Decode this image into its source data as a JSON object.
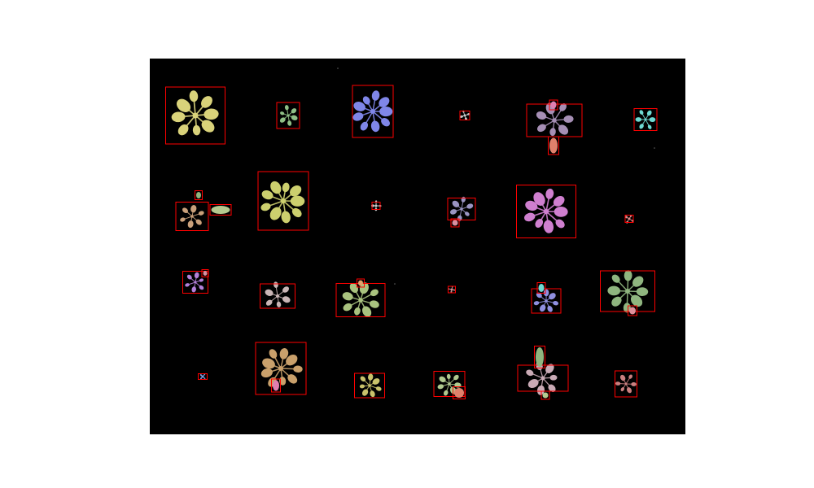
{
  "figure": {
    "box_color": "#ff0000",
    "background_color": "#000000"
  },
  "plants": [
    {
      "id": "r1c1",
      "color": "#d9d27a"
    },
    {
      "id": "r1c2",
      "color": "#8fbf86"
    },
    {
      "id": "r1c3",
      "color": "#7f86e8"
    },
    {
      "id": "r1c4",
      "color": "#c9c9c9"
    },
    {
      "id": "r1c5",
      "color": "#a68fb5"
    },
    {
      "id": "r1c6",
      "color": "#6fd9d2"
    },
    {
      "id": "r2c1",
      "color": "#c9a07a"
    },
    {
      "id": "r2c2",
      "color": "#cccf6e"
    },
    {
      "id": "r2c3",
      "color": "#c9c9c9"
    },
    {
      "id": "r2c4",
      "color": "#9a94c2"
    },
    {
      "id": "r2c5",
      "color": "#cf7fcf"
    },
    {
      "id": "r2c6",
      "color": "#d88f8f"
    },
    {
      "id": "r3c1",
      "color": "#b380d9"
    },
    {
      "id": "r3c2",
      "color": "#c9b5b5"
    },
    {
      "id": "r3c3",
      "color": "#a9c27f"
    },
    {
      "id": "r3c4",
      "color": "#c99090"
    },
    {
      "id": "r3c5",
      "color": "#8f8fe0"
    },
    {
      "id": "r3c6",
      "color": "#8fb57f"
    },
    {
      "id": "r4c1",
      "color": "#7f9be0"
    },
    {
      "id": "r4c2",
      "color": "#c9a06b"
    },
    {
      "id": "r4c3",
      "color": "#c9c26b"
    },
    {
      "id": "r4c4",
      "color": "#b0c98f"
    },
    {
      "id": "r4c5",
      "color": "#c9aab5"
    },
    {
      "id": "r4c6",
      "color": "#c98080"
    }
  ],
  "extra_leaf_colors": [
    "#e07fb0",
    "#e0806b",
    "#8fb57f",
    "#b5c98f",
    "#d98fa0",
    "#e0a06b",
    "#6fd9d2",
    "#e0909b"
  ]
}
